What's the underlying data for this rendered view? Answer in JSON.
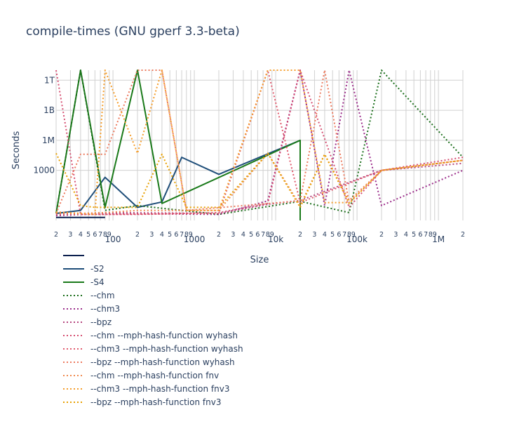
{
  "chart_data": {
    "type": "line",
    "title": "compile-times (GNU gperf 3.3-beta)",
    "xlabel": "Size",
    "ylabel": "Seconds",
    "x_scale": "log",
    "y_scale": "log",
    "xlim": [
      20,
      2000000
    ],
    "ylim": [
      0.01,
      10000000000000.0
    ],
    "x_ticks": [
      {
        "v": 20,
        "label": "2"
      },
      {
        "v": 30,
        "label": "3"
      },
      {
        "v": 40,
        "label": "4"
      },
      {
        "v": 50,
        "label": "5"
      },
      {
        "v": 60,
        "label": "6"
      },
      {
        "v": 70,
        "label": "7"
      },
      {
        "v": 80,
        "label": "8"
      },
      {
        "v": 90,
        "label": "9"
      },
      {
        "v": 100,
        "label": "100"
      },
      {
        "v": 200,
        "label": "2"
      },
      {
        "v": 300,
        "label": "3"
      },
      {
        "v": 400,
        "label": "4"
      },
      {
        "v": 500,
        "label": "5"
      },
      {
        "v": 600,
        "label": "6"
      },
      {
        "v": 700,
        "label": "7"
      },
      {
        "v": 800,
        "label": "8"
      },
      {
        "v": 900,
        "label": "9"
      },
      {
        "v": 1000,
        "label": "1000"
      },
      {
        "v": 2000,
        "label": "2"
      },
      {
        "v": 3000,
        "label": "3"
      },
      {
        "v": 4000,
        "label": "4"
      },
      {
        "v": 5000,
        "label": "5"
      },
      {
        "v": 6000,
        "label": "6"
      },
      {
        "v": 7000,
        "label": "7"
      },
      {
        "v": 8000,
        "label": "8"
      },
      {
        "v": 9000,
        "label": "9"
      },
      {
        "v": 10000,
        "label": "10k"
      },
      {
        "v": 20000,
        "label": "2"
      },
      {
        "v": 30000,
        "label": "3"
      },
      {
        "v": 40000,
        "label": "4"
      },
      {
        "v": 50000,
        "label": "5"
      },
      {
        "v": 60000,
        "label": "6"
      },
      {
        "v": 70000,
        "label": "7"
      },
      {
        "v": 80000,
        "label": "8"
      },
      {
        "v": 90000,
        "label": "9"
      },
      {
        "v": 100000,
        "label": "100k"
      },
      {
        "v": 200000,
        "label": "2"
      },
      {
        "v": 300000,
        "label": "3"
      },
      {
        "v": 400000,
        "label": "4"
      },
      {
        "v": 500000,
        "label": "5"
      },
      {
        "v": 600000,
        "label": "6"
      },
      {
        "v": 700000,
        "label": "7"
      },
      {
        "v": 800000,
        "label": "8"
      },
      {
        "v": 900000,
        "label": "9"
      },
      {
        "v": 1000000,
        "label": "1M"
      },
      {
        "v": 2000000,
        "label": "2"
      }
    ],
    "y_ticks": [
      {
        "v": 1000,
        "label": "1000"
      },
      {
        "v": 1000000,
        "label": "1M"
      },
      {
        "v": 1000000000,
        "label": "1B"
      },
      {
        "v": 1000000000000,
        "label": "1T"
      }
    ],
    "grid": true,
    "legend_position": "bottom-left",
    "series": [
      {
        "name": "",
        "color": "#0b1f4d",
        "dash": "solid",
        "x": [
          20,
          40,
          60,
          80
        ],
        "y": [
          0.02,
          0.02,
          0.02,
          0.02
        ]
      },
      {
        "name": "-S2",
        "color": "#1f4e79",
        "dash": "solid",
        "x": [
          20,
          40,
          80,
          200,
          400,
          700,
          2000,
          20000
        ],
        "y": [
          0.05,
          0.1,
          200,
          0.2,
          0.7,
          20000,
          400,
          1000000
        ]
      },
      {
        "name": "-S4",
        "color": "#1a7a1a",
        "dash": "solid",
        "x": [
          20,
          40,
          80,
          200,
          400,
          20000,
          20000
        ],
        "y": [
          0.05,
          10000000000000,
          0.2,
          10000000000000,
          0.5,
          1000000,
          0.01
        ]
      },
      {
        "name": "--chm",
        "color": "#1a6e1a",
        "dash": "dot",
        "x": [
          20,
          40,
          80,
          200,
          2000,
          20000,
          80000,
          200000,
          2000000
        ],
        "y": [
          0.05,
          10000000000000,
          0.1,
          0.3,
          0.04,
          0.8,
          0.06,
          10000000000000,
          20000
        ]
      },
      {
        "name": "--chm3",
        "color": "#9b2d8a",
        "dash": "dot",
        "x": [
          20,
          80,
          2000,
          8000,
          20000,
          40000,
          80000,
          200000,
          2000000
        ],
        "y": [
          0.03,
          0.05,
          0.04,
          0.9,
          10000000000000,
          0.3,
          10000000000000,
          0.3,
          1000
        ]
      },
      {
        "name": "--bpz",
        "color": "#b5457e",
        "dash": "dot",
        "x": [
          20,
          80,
          2000,
          8000,
          20000,
          200000,
          2000000
        ],
        "y": [
          0.04,
          0.06,
          0.05,
          0.4,
          1,
          1000,
          5000
        ]
      },
      {
        "name": "--chm --mph-hash-function wyhash",
        "color": "#d64f72",
        "dash": "dot",
        "x": [
          20,
          40,
          80,
          200,
          2000,
          8000,
          20000,
          80000,
          200000,
          2000000
        ],
        "y": [
          10000000000000,
          0.04,
          0.04,
          0.04,
          0.06,
          0.5,
          10000000000000,
          0.2,
          1000,
          20000
        ]
      },
      {
        "name": "--chm3 --mph-hash-function wyhash",
        "color": "#e05a6d",
        "dash": "dot",
        "x": [
          20,
          80,
          2000,
          8000,
          20000,
          200000,
          2000000
        ],
        "y": [
          0.04,
          0.04,
          0.05,
          10000000000000,
          0.6,
          1000,
          10000
        ]
      },
      {
        "name": "--bpz --mph-hash-function wyhash",
        "color": "#ec7a5e",
        "dash": "dot",
        "x": [
          20,
          40,
          60,
          80,
          200,
          400,
          800,
          20000,
          40000,
          80000,
          200000,
          2000000
        ],
        "y": [
          0.05,
          40000,
          40000,
          40000,
          10000000000000,
          10000000000000,
          0.1,
          0.9,
          10000000000000,
          0.6,
          1000,
          10000
        ]
      },
      {
        "name": "--chm --mph-hash-function fnv",
        "color": "#f08a50",
        "dash": "dot",
        "x": [
          20,
          40,
          80,
          200,
          400,
          800,
          2000,
          8000,
          20000,
          40000,
          80000,
          200000,
          2000000
        ],
        "y": [
          0.07,
          0.05,
          0.06,
          0.1,
          0.1,
          0.1,
          0.1,
          50000,
          0.3,
          40000,
          1,
          1000,
          10000
        ]
      },
      {
        "name": "--chm3 --mph-hash-function fnv3",
        "color": "#f59d2a",
        "dash": "dot",
        "x": [
          20,
          40,
          60,
          80,
          200,
          400,
          800,
          2000,
          8000,
          20000,
          40000,
          80000
        ],
        "y": [
          0.06,
          0.05,
          0.04,
          10000000000000,
          50000,
          10000000000000,
          0.1,
          0.1,
          10000000000000,
          10000000000000,
          0.6,
          0.6
        ]
      },
      {
        "name": "--bpz --mph-hash-function fnv3",
        "color": "#e8a000",
        "dash": "dot",
        "x": [
          20,
          40,
          60,
          80,
          200,
          400,
          800,
          2000,
          8000,
          20000,
          40000,
          80000,
          200000,
          2000000
        ],
        "y": [
          50000,
          0.3,
          0.2,
          0.2,
          0.2,
          40000,
          0.2,
          0.2,
          50000,
          0.2,
          40000,
          0.5,
          1000,
          10000
        ]
      }
    ]
  }
}
